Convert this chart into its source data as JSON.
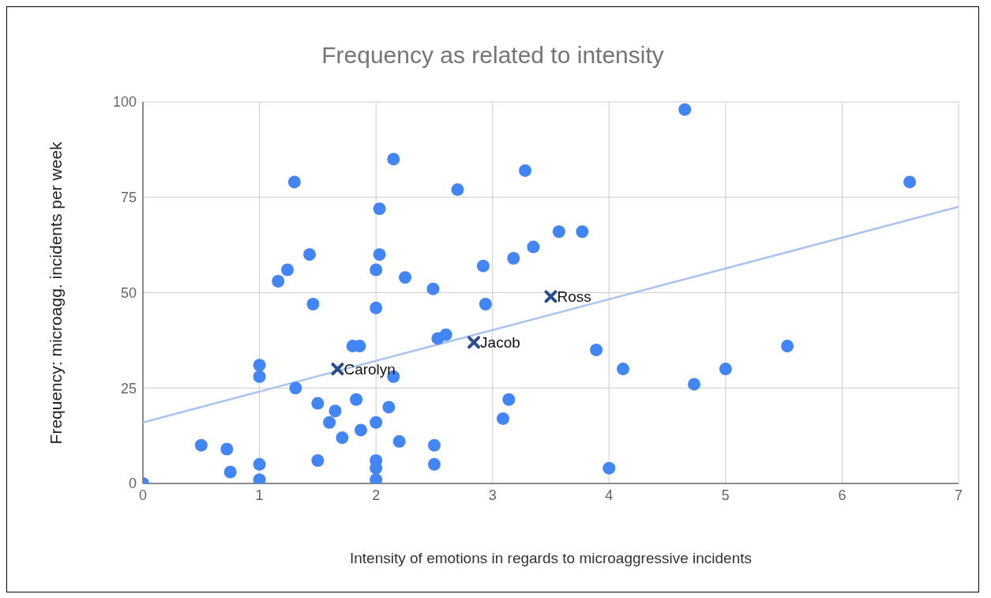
{
  "chart_data": {
    "type": "scatter",
    "title": "Frequency as related to intensity",
    "xlabel": "Intensity of emotions in regards to microaggressive incidents",
    "ylabel": "Frequency: microagg. incidents per week",
    "xlim": [
      0,
      7
    ],
    "xticks": [
      0,
      1,
      2,
      3,
      4,
      5,
      6,
      7
    ],
    "ylim": [
      0,
      100
    ],
    "yticks": [
      0,
      25,
      50,
      75,
      100
    ],
    "grid": true,
    "marker": "circle",
    "series": [
      {
        "color": "#4285f4",
        "x": [
          0,
          0.5,
          0.72,
          0.75,
          1.0,
          1.0,
          1.0,
          1.0,
          1.16,
          1.24,
          1.3,
          1.31,
          1.43,
          1.46,
          1.5,
          1.5,
          1.6,
          1.65,
          1.71,
          1.8,
          1.86,
          1.83,
          1.87,
          2.0,
          2.0,
          2.0,
          2.0,
          2.0,
          2.0,
          2.03,
          2.03,
          2.15,
          2.15,
          2.11,
          2.2,
          2.25,
          2.49,
          2.5,
          2.5,
          2.53,
          2.6,
          2.7,
          2.92,
          2.94,
          3.09,
          3.14,
          3.18,
          3.28,
          3.35,
          3.57,
          3.77,
          3.89,
          4.0,
          4.12,
          4.65,
          4.73,
          5.0,
          5.53,
          6.58
        ],
        "values": [
          0,
          10,
          9,
          3,
          28,
          31,
          5,
          1,
          53,
          56,
          79,
          25,
          60,
          47,
          21,
          6,
          16,
          19,
          12,
          36,
          36,
          22,
          14,
          56,
          46,
          16,
          6,
          4,
          1,
          72,
          60,
          85,
          28,
          20,
          11,
          54,
          51,
          10,
          5,
          38,
          39,
          77,
          57,
          47,
          17,
          22,
          59,
          82,
          62,
          66,
          66,
          35,
          4,
          30,
          98,
          26,
          30,
          36,
          79
        ]
      },
      {
        "color": "#2b4c8c",
        "marker": "cross",
        "x": [
          1.67,
          2.84,
          3.5
        ],
        "values": [
          30,
          37,
          49
        ]
      },
      {
        "type": "line",
        "marker": "none",
        "color": "#a9c4f0",
        "x": [
          0,
          7
        ],
        "values": [
          16,
          72.5
        ]
      }
    ],
    "annotations": [
      {
        "text": "Carolyn",
        "x": 1.67,
        "y": 30
      },
      {
        "text": "Jacob",
        "x": 2.84,
        "y": 37
      },
      {
        "text": "Ross",
        "x": 3.5,
        "y": 49
      }
    ]
  }
}
